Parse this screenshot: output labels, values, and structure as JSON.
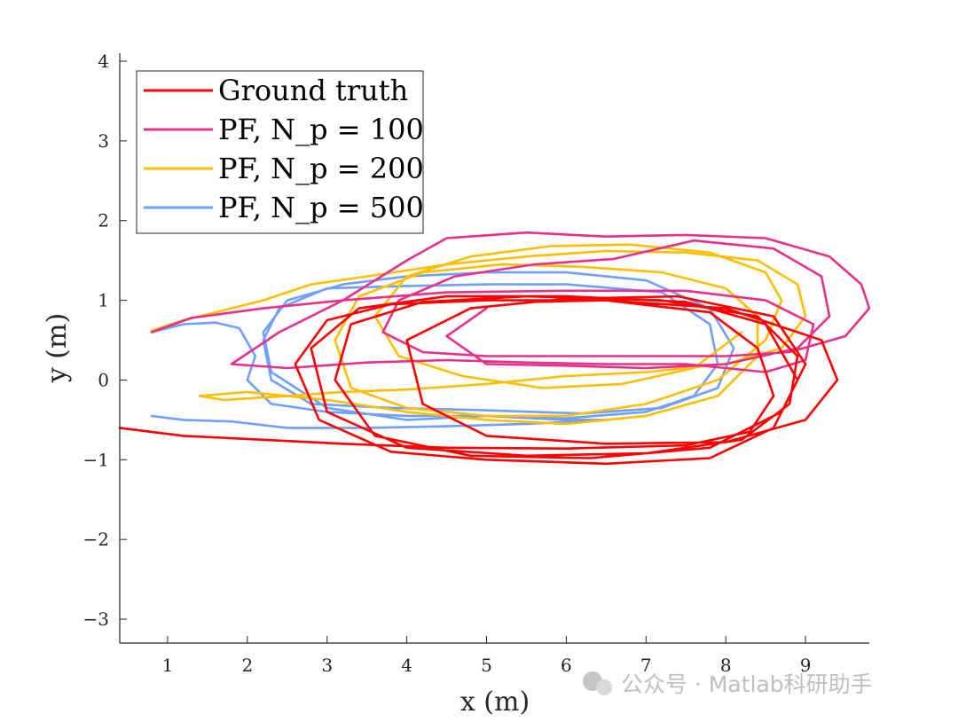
{
  "chart_data": {
    "type": "line",
    "xlabel": "x (m)",
    "ylabel": "y (m)",
    "xlim": [
      0.4,
      9.8
    ],
    "ylim": [
      -3.3,
      4.1
    ],
    "xticks": [
      1,
      2,
      3,
      4,
      5,
      6,
      7,
      8,
      9
    ],
    "yticks": [
      -3,
      -2,
      -1,
      0,
      1,
      2,
      3,
      4
    ],
    "grid": false,
    "legend_position": "top-left",
    "series": [
      {
        "name": "Ground truth",
        "color": "#ff0000",
        "points": [
          [
            0.4,
            -0.6
          ],
          [
            1.2,
            -0.7
          ],
          [
            2.2,
            -0.75
          ],
          [
            3.2,
            -0.8
          ],
          [
            4.5,
            -0.85
          ],
          [
            6.0,
            -0.86
          ],
          [
            7.5,
            -0.82
          ],
          [
            8.3,
            -0.65
          ],
          [
            8.6,
            -0.2
          ],
          [
            8.4,
            0.4
          ],
          [
            7.8,
            0.85
          ],
          [
            6.5,
            1.0
          ],
          [
            5.0,
            1.0
          ],
          [
            3.8,
            0.95
          ],
          [
            3.0,
            0.75
          ],
          [
            2.6,
            0.2
          ],
          [
            2.9,
            -0.5
          ],
          [
            3.8,
            -0.9
          ],
          [
            5.0,
            -1.0
          ],
          [
            6.5,
            -1.05
          ],
          [
            7.8,
            -0.98
          ],
          [
            8.6,
            -0.6
          ],
          [
            8.9,
            0.0
          ],
          [
            8.5,
            0.7
          ],
          [
            7.5,
            0.98
          ],
          [
            6.0,
            1.05
          ],
          [
            4.5,
            1.05
          ],
          [
            3.4,
            0.9
          ],
          [
            2.8,
            0.4
          ],
          [
            3.0,
            -0.4
          ],
          [
            4.0,
            -0.85
          ],
          [
            5.5,
            -0.95
          ],
          [
            7.0,
            -0.92
          ],
          [
            8.2,
            -0.75
          ],
          [
            8.8,
            -0.3
          ],
          [
            8.9,
            0.3
          ],
          [
            8.4,
            0.8
          ],
          [
            7.2,
            1.0
          ],
          [
            5.5,
            1.05
          ],
          [
            4.2,
            0.98
          ],
          [
            3.3,
            0.7
          ],
          [
            3.1,
            0.0
          ],
          [
            3.6,
            -0.7
          ],
          [
            4.8,
            -0.95
          ],
          [
            6.3,
            -0.98
          ],
          [
            7.8,
            -0.85
          ],
          [
            8.7,
            -0.4
          ],
          [
            9.0,
            0.2
          ],
          [
            8.6,
            0.8
          ],
          [
            7.4,
            1.05
          ],
          [
            6.0,
            1.02
          ],
          [
            4.8,
            0.9
          ],
          [
            4.0,
            0.5
          ],
          [
            4.2,
            -0.3
          ],
          [
            5.0,
            -0.7
          ],
          [
            6.5,
            -0.8
          ],
          [
            8.0,
            -0.78
          ],
          [
            9.0,
            -0.5
          ],
          [
            9.4,
            0.0
          ],
          [
            9.2,
            0.5
          ],
          [
            8.0,
            0.9
          ],
          [
            6.5,
            1.0
          ],
          [
            5.5,
            0.98
          ]
        ]
      },
      {
        "name": "PF, N_p = 100",
        "color": "#e8308a",
        "points": [
          [
            0.8,
            0.6
          ],
          [
            1.3,
            0.78
          ],
          [
            2.2,
            0.9
          ],
          [
            3.2,
            1.0
          ],
          [
            4.5,
            1.1
          ],
          [
            6.0,
            1.12
          ],
          [
            7.5,
            1.12
          ],
          [
            8.5,
            1.0
          ],
          [
            9.1,
            0.7
          ],
          [
            9.0,
            0.25
          ],
          [
            8.5,
            0.1
          ],
          [
            7.5,
            0.2
          ],
          [
            6.5,
            0.2
          ],
          [
            5.5,
            0.22
          ],
          [
            4.5,
            0.25
          ],
          [
            3.5,
            0.22
          ],
          [
            2.5,
            0.15
          ],
          [
            1.8,
            0.2
          ],
          [
            2.4,
            0.6
          ],
          [
            3.2,
            1.0
          ],
          [
            4.0,
            1.5
          ],
          [
            4.5,
            1.78
          ],
          [
            5.5,
            1.85
          ],
          [
            6.5,
            1.8
          ],
          [
            7.5,
            1.82
          ],
          [
            8.5,
            1.78
          ],
          [
            9.3,
            1.55
          ],
          [
            9.7,
            1.2
          ],
          [
            9.8,
            0.9
          ],
          [
            9.5,
            0.55
          ],
          [
            8.8,
            0.35
          ],
          [
            8.0,
            0.3
          ],
          [
            7.0,
            0.3
          ],
          [
            6.0,
            0.3
          ],
          [
            5.0,
            0.3
          ],
          [
            4.2,
            0.35
          ],
          [
            3.7,
            0.6
          ],
          [
            3.9,
            1.0
          ],
          [
            4.6,
            1.3
          ],
          [
            5.6,
            1.45
          ],
          [
            6.6,
            1.52
          ],
          [
            7.6,
            1.75
          ],
          [
            8.6,
            1.65
          ],
          [
            9.2,
            1.3
          ],
          [
            9.3,
            0.8
          ],
          [
            8.9,
            0.4
          ],
          [
            8.0,
            0.2
          ],
          [
            7.0,
            0.15
          ],
          [
            6.0,
            0.18
          ],
          [
            5.0,
            0.2
          ],
          [
            4.5,
            0.55
          ],
          [
            5.0,
            0.9
          ]
        ]
      },
      {
        "name": "PF, N_p = 200",
        "color": "#ffbf00",
        "points": [
          [
            0.8,
            0.62
          ],
          [
            1.2,
            0.75
          ],
          [
            1.6,
            0.85
          ],
          [
            2.2,
            1.0
          ],
          [
            2.8,
            1.2
          ],
          [
            3.5,
            1.3
          ],
          [
            4.5,
            1.45
          ],
          [
            5.5,
            1.55
          ],
          [
            6.5,
            1.62
          ],
          [
            7.5,
            1.6
          ],
          [
            8.4,
            1.5
          ],
          [
            8.9,
            1.2
          ],
          [
            9.0,
            0.8
          ],
          [
            8.7,
            0.4
          ],
          [
            8.0,
            0.2
          ],
          [
            7.0,
            0.1
          ],
          [
            6.0,
            0.05
          ],
          [
            5.0,
            -0.05
          ],
          [
            4.0,
            -0.12
          ],
          [
            3.2,
            -0.15
          ],
          [
            2.5,
            -0.2
          ],
          [
            1.7,
            -0.25
          ],
          [
            1.4,
            -0.2
          ],
          [
            2.0,
            -0.15
          ],
          [
            3.0,
            -0.25
          ],
          [
            4.0,
            -0.4
          ],
          [
            5.0,
            -0.5
          ],
          [
            6.0,
            -0.55
          ],
          [
            7.0,
            -0.45
          ],
          [
            7.9,
            -0.2
          ],
          [
            8.4,
            0.3
          ],
          [
            8.4,
            0.8
          ],
          [
            8.0,
            1.15
          ],
          [
            7.2,
            1.35
          ],
          [
            6.2,
            1.42
          ],
          [
            5.2,
            1.45
          ],
          [
            4.2,
            1.35
          ],
          [
            3.4,
            1.05
          ],
          [
            3.1,
            0.5
          ],
          [
            3.3,
            -0.1
          ],
          [
            4.0,
            -0.35
          ],
          [
            5.0,
            -0.45
          ],
          [
            6.0,
            -0.45
          ],
          [
            7.0,
            -0.3
          ],
          [
            7.9,
            0.0
          ],
          [
            8.5,
            0.5
          ],
          [
            8.7,
            1.0
          ],
          [
            8.5,
            1.35
          ],
          [
            7.8,
            1.6
          ],
          [
            6.8,
            1.7
          ],
          [
            5.8,
            1.68
          ],
          [
            4.8,
            1.55
          ],
          [
            4.0,
            1.3
          ],
          [
            3.6,
            0.8
          ],
          [
            3.9,
            0.3
          ],
          [
            4.7,
            0.05
          ],
          [
            5.7,
            -0.1
          ],
          [
            6.7,
            -0.05
          ],
          [
            7.6,
            0.15
          ],
          [
            8.2,
            0.6
          ]
        ]
      },
      {
        "name": "PF, N_p = 500",
        "color": "#6fa0ff",
        "points": [
          [
            0.8,
            0.6
          ],
          [
            1.2,
            0.7
          ],
          [
            1.6,
            0.72
          ],
          [
            1.9,
            0.65
          ],
          [
            2.1,
            0.3
          ],
          [
            2.0,
            0.0
          ],
          [
            2.3,
            -0.3
          ],
          [
            3.0,
            -0.4
          ],
          [
            4.0,
            -0.45
          ],
          [
            5.0,
            -0.45
          ],
          [
            6.0,
            -0.48
          ],
          [
            7.0,
            -0.4
          ],
          [
            7.6,
            -0.2
          ],
          [
            7.9,
            0.2
          ],
          [
            7.8,
            0.7
          ],
          [
            7.2,
            1.1
          ],
          [
            6.0,
            1.2
          ],
          [
            5.0,
            1.2
          ],
          [
            4.0,
            1.18
          ],
          [
            3.0,
            1.15
          ],
          [
            2.4,
            0.9
          ],
          [
            2.2,
            0.5
          ],
          [
            2.3,
            0.0
          ],
          [
            2.8,
            -0.3
          ],
          [
            3.8,
            -0.35
          ],
          [
            5.0,
            -0.38
          ],
          [
            6.2,
            -0.42
          ],
          [
            7.2,
            -0.35
          ],
          [
            7.9,
            -0.1
          ],
          [
            8.1,
            0.4
          ],
          [
            7.8,
            0.9
          ],
          [
            7.0,
            1.25
          ],
          [
            6.0,
            1.35
          ],
          [
            5.0,
            1.35
          ],
          [
            4.0,
            1.3
          ],
          [
            3.2,
            1.2
          ],
          [
            2.5,
            1.0
          ],
          [
            2.2,
            0.6
          ],
          [
            2.3,
            0.1
          ],
          [
            3.0,
            -0.35
          ],
          [
            4.0,
            -0.5
          ],
          [
            5.0,
            -0.45
          ],
          [
            6.0,
            -0.5
          ],
          [
            6.5,
            -0.5
          ],
          [
            5.5,
            -0.55
          ],
          [
            4.5,
            -0.58
          ],
          [
            3.5,
            -0.6
          ],
          [
            2.5,
            -0.6
          ],
          [
            1.8,
            -0.52
          ],
          [
            1.2,
            -0.5
          ],
          [
            0.8,
            -0.45
          ]
        ]
      }
    ]
  },
  "legend": {
    "items": [
      {
        "label": "Ground truth",
        "color": "#ff0000"
      },
      {
        "label": "PF, N_p = 100",
        "color": "#e8308a"
      },
      {
        "label": "PF, N_p = 200",
        "color": "#ffbf00"
      },
      {
        "label": "PF, N_p = 500",
        "color": "#6fa0ff"
      }
    ]
  },
  "watermark": {
    "text": "公众号 · Matlab科研助手"
  }
}
